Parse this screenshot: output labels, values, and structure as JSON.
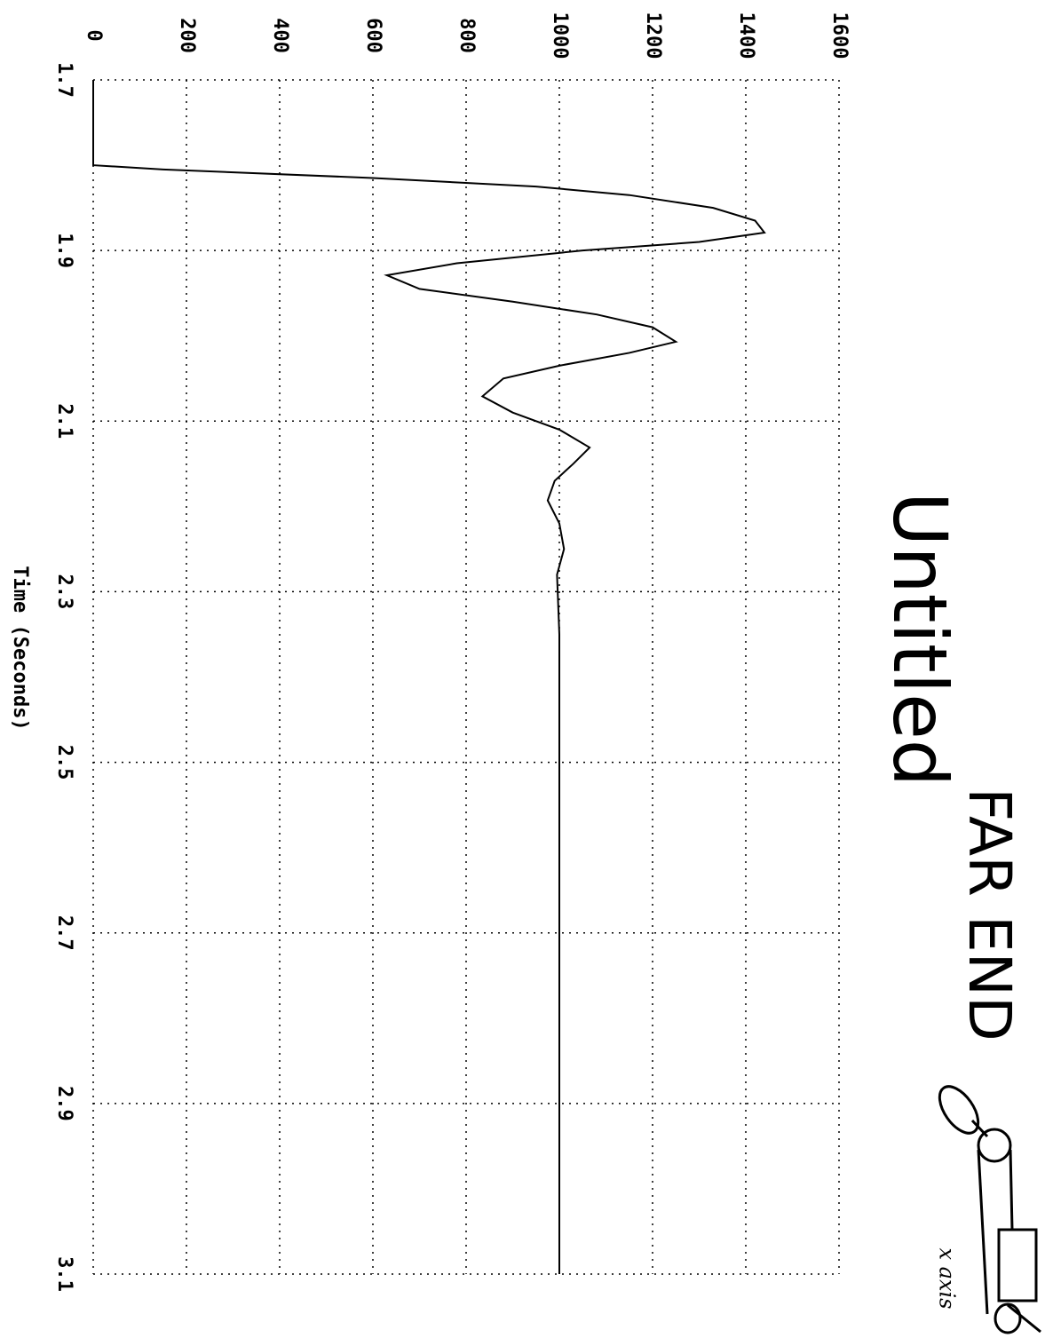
{
  "chart_data": {
    "type": "line",
    "title": "Untitled",
    "x_label": "Time (Seconds)",
    "annotations": [
      "FAR END",
      "x axis"
    ],
    "x": [
      1.7,
      1.8,
      1.805,
      1.815,
      1.825,
      1.835,
      1.85,
      1.865,
      1.879,
      1.89,
      1.9,
      1.915,
      1.929,
      1.945,
      1.96,
      1.975,
      1.99,
      2.007,
      2.02,
      2.035,
      2.05,
      2.071,
      2.09,
      2.11,
      2.131,
      2.15,
      2.17,
      2.193,
      2.22,
      2.25,
      2.28,
      2.35,
      2.5,
      3.1
    ],
    "values": [
      0,
      0,
      150,
      600,
      950,
      1150,
      1330,
      1420,
      1440,
      1300,
      1050,
      780,
      630,
      700,
      900,
      1080,
      1200,
      1250,
      1150,
      1000,
      880,
      835,
      900,
      1000,
      1065,
      1030,
      990,
      975,
      1000,
      1010,
      995,
      1000,
      1000,
      1000
    ],
    "color": "#000000",
    "xlim": [
      1.7,
      3.1
    ],
    "xticks": [
      1.7,
      1.9,
      2.1,
      2.3,
      2.5,
      2.7,
      2.9,
      3.1
    ],
    "ylim": [
      0,
      1600
    ],
    "yticks": [
      0,
      200,
      400,
      600,
      800,
      1000,
      1200,
      1400,
      1600
    ],
    "grid": true
  }
}
